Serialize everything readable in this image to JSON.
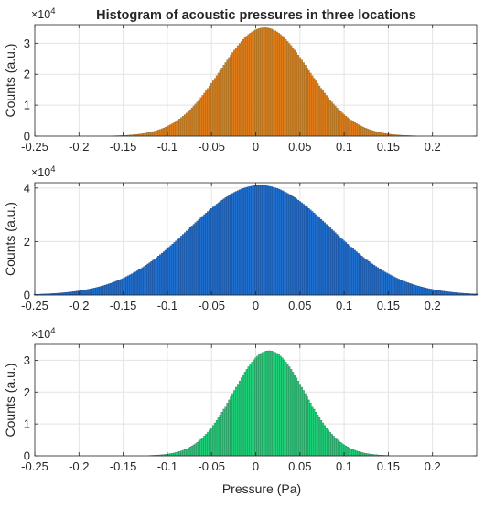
{
  "figure": {
    "title": "Histogram of acoustic pressures in three locations",
    "xlabel": "Pressure (Pa)",
    "ylabel": "Counts (a.u.)",
    "y_exponent_base": "×10",
    "y_exponent": "4"
  },
  "chart_data": [
    {
      "type": "bar",
      "title": "Histogram of acoustic pressures in three locations",
      "ylabel": "Counts (a.u.)",
      "color": "#e07b1a",
      "edge_color": "#7a6a2a",
      "xlim": [
        -0.25,
        0.25
      ],
      "ylim": [
        0,
        3.6
      ],
      "y_scale_exponent": 4,
      "xticks": [
        -0.25,
        -0.2,
        -0.15,
        -0.1,
        -0.05,
        0,
        0.05,
        0.1,
        0.15,
        0.2
      ],
      "xticklabels": [
        "-0.25",
        "-0.2",
        "-0.15",
        "-0.1",
        "-0.05",
        "0",
        "0.05",
        "0.1",
        "0.15",
        "0.2"
      ],
      "yticks": [
        0,
        1,
        2,
        3
      ],
      "yticklabels": [
        "0",
        "1",
        "2",
        "3"
      ],
      "distribution": {
        "center": 0.01,
        "sd": 0.05,
        "peak": 3.5,
        "range": [
          -0.18,
          0.22
        ]
      },
      "grid": true
    },
    {
      "type": "bar",
      "ylabel": "Counts (a.u.)",
      "color": "#1f6fcf",
      "edge_color": "#1a3f7a",
      "xlim": [
        -0.25,
        0.25
      ],
      "ylim": [
        0,
        4.2
      ],
      "y_scale_exponent": 4,
      "xticks": [
        -0.25,
        -0.2,
        -0.15,
        -0.1,
        -0.05,
        0,
        0.05,
        0.1,
        0.15,
        0.2
      ],
      "xticklabels": [
        "-0.25",
        "-0.2",
        "-0.15",
        "-0.1",
        "-0.05",
        "0",
        "0.05",
        "0.1",
        "0.15",
        "0.2"
      ],
      "yticks": [
        0,
        2,
        4
      ],
      "yticklabels": [
        "0",
        "2",
        "4"
      ],
      "distribution": {
        "center": 0.005,
        "sd": 0.08,
        "peak": 4.1,
        "range": [
          -0.25,
          0.25
        ]
      },
      "grid": true
    },
    {
      "type": "bar",
      "xlabel": "Pressure (Pa)",
      "ylabel": "Counts (a.u.)",
      "color": "#1ecf78",
      "edge_color": "#3a6a50",
      "xlim": [
        -0.25,
        0.25
      ],
      "ylim": [
        0,
        3.5
      ],
      "y_scale_exponent": 4,
      "xticks": [
        -0.25,
        -0.2,
        -0.15,
        -0.1,
        -0.05,
        0,
        0.05,
        0.1,
        0.15,
        0.2
      ],
      "xticklabels": [
        "-0.25",
        "-0.2",
        "-0.15",
        "-0.1",
        "-0.05",
        "0",
        "0.05",
        "0.1",
        "0.15",
        "0.2"
      ],
      "yticks": [
        0,
        1,
        2,
        3
      ],
      "yticklabels": [
        "0",
        "1",
        "2",
        "3"
      ],
      "distribution": {
        "center": 0.015,
        "sd": 0.04,
        "peak": 3.3,
        "range": [
          -0.13,
          0.16
        ]
      },
      "grid": true
    }
  ]
}
